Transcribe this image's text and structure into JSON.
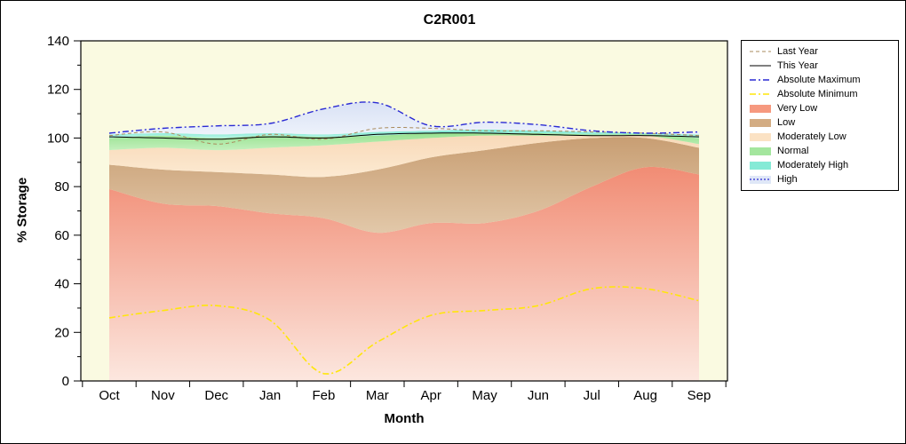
{
  "chart_data": {
    "type": "area",
    "title": "C2R001",
    "xlabel": "Month",
    "ylabel": "% Storage",
    "ylim": [
      0,
      140
    ],
    "yticks": [
      0,
      20,
      40,
      60,
      80,
      100,
      120,
      140
    ],
    "categories": [
      "Oct",
      "Nov",
      "Dec",
      "Jan",
      "Feb",
      "Mar",
      "Apr",
      "May",
      "Jun",
      "Jul",
      "Aug",
      "Sep"
    ],
    "plot_bg": "#FAFAE1",
    "bands": [
      {
        "name": "Very Low",
        "top": [
          79,
          73,
          72,
          69,
          67,
          61,
          65,
          65,
          70,
          80,
          88,
          85
        ],
        "fill_top": "#F18C74",
        "fill_bottom": "#FCE7DF"
      },
      {
        "name": "Low",
        "top": [
          89,
          87,
          86,
          85,
          84,
          87,
          92,
          95,
          98,
          100,
          100,
          96
        ],
        "fill_top": "#C89E73",
        "fill_bottom": "#E2C8A9"
      },
      {
        "name": "Moderately Low",
        "top": [
          95,
          96,
          95,
          96,
          97,
          98.5,
          100,
          101,
          101,
          101,
          101,
          97.5
        ],
        "fill_top": "#F8D9B8",
        "fill_bottom": "#FCEAD2"
      },
      {
        "name": "Normal",
        "top": [
          100,
          101,
          100,
          101,
          100.5,
          101,
          102,
          102,
          102,
          101.5,
          101.5,
          100
        ],
        "fill_top": "#97E190",
        "fill_bottom": "#C4F0BD"
      },
      {
        "name": "Moderately High",
        "top": [
          101.5,
          102,
          101.5,
          102,
          101.5,
          102.5,
          103,
          103.5,
          103,
          102.5,
          102,
          101.5
        ],
        "fill_top": "#7BE8D2",
        "fill_bottom": "#B5F3E5"
      },
      {
        "name": "High",
        "top_ref": "Absolute Maximum",
        "fill_top": "#D9E1F5",
        "fill_bottom": "#EDF2FB"
      }
    ],
    "lines": [
      {
        "name": "Last Year",
        "values": [
          101,
          102.5,
          97.5,
          101.5,
          99.5,
          104,
          104,
          103,
          103,
          102.5,
          102,
          101
        ],
        "color": "#AA8B5C",
        "dash": "4 3",
        "width": 1
      },
      {
        "name": "This Year",
        "values": [
          100.5,
          100,
          99.5,
          100.5,
          100,
          101.5,
          102,
          102,
          101.5,
          101,
          101,
          100.5
        ],
        "color": "#000000",
        "dash": "",
        "width": 1
      },
      {
        "name": "Absolute Maximum",
        "values": [
          102,
          104,
          105,
          106,
          112,
          114.5,
          105,
          106.5,
          105.5,
          103,
          102,
          102.5
        ],
        "color": "#2A2AD4",
        "dash": "7 3 2 3",
        "width": 1.4
      },
      {
        "name": "Absolute Minimum",
        "values": [
          26,
          29,
          31,
          25,
          3,
          16,
          27,
          29,
          31,
          38,
          38,
          33
        ],
        "color": "#FFE60A",
        "dash": "7 3 2 3",
        "width": 1.6
      }
    ],
    "legend": {
      "position": "right",
      "items": [
        {
          "label": "Last Year",
          "swatch": "line",
          "color": "#AA8B5C",
          "dash": "4 3",
          "width": 1
        },
        {
          "label": "This Year",
          "swatch": "line",
          "color": "#000000",
          "dash": "",
          "width": 1
        },
        {
          "label": "Absolute Maximum",
          "swatch": "line",
          "color": "#2A2AD4",
          "dash": "7 3 2 3",
          "width": 1.4
        },
        {
          "label": "Absolute Minimum",
          "swatch": "line",
          "color": "#FFE60A",
          "dash": "7 3 2 3",
          "width": 1.6
        },
        {
          "label": "Very Low",
          "swatch": "band",
          "color": "#F6997F"
        },
        {
          "label": "Low",
          "swatch": "band",
          "color": "#D3AC83"
        },
        {
          "label": "Moderately Low",
          "swatch": "band",
          "color": "#FBE2C4"
        },
        {
          "label": "Normal",
          "swatch": "band",
          "color": "#A4E69E"
        },
        {
          "label": "Moderately High",
          "swatch": "band",
          "color": "#85EAD6"
        },
        {
          "label": "High",
          "swatch": "band-dash",
          "color": "#DFE7F7",
          "line_color": "#2A2AD4",
          "dash": "2 2"
        }
      ]
    }
  }
}
